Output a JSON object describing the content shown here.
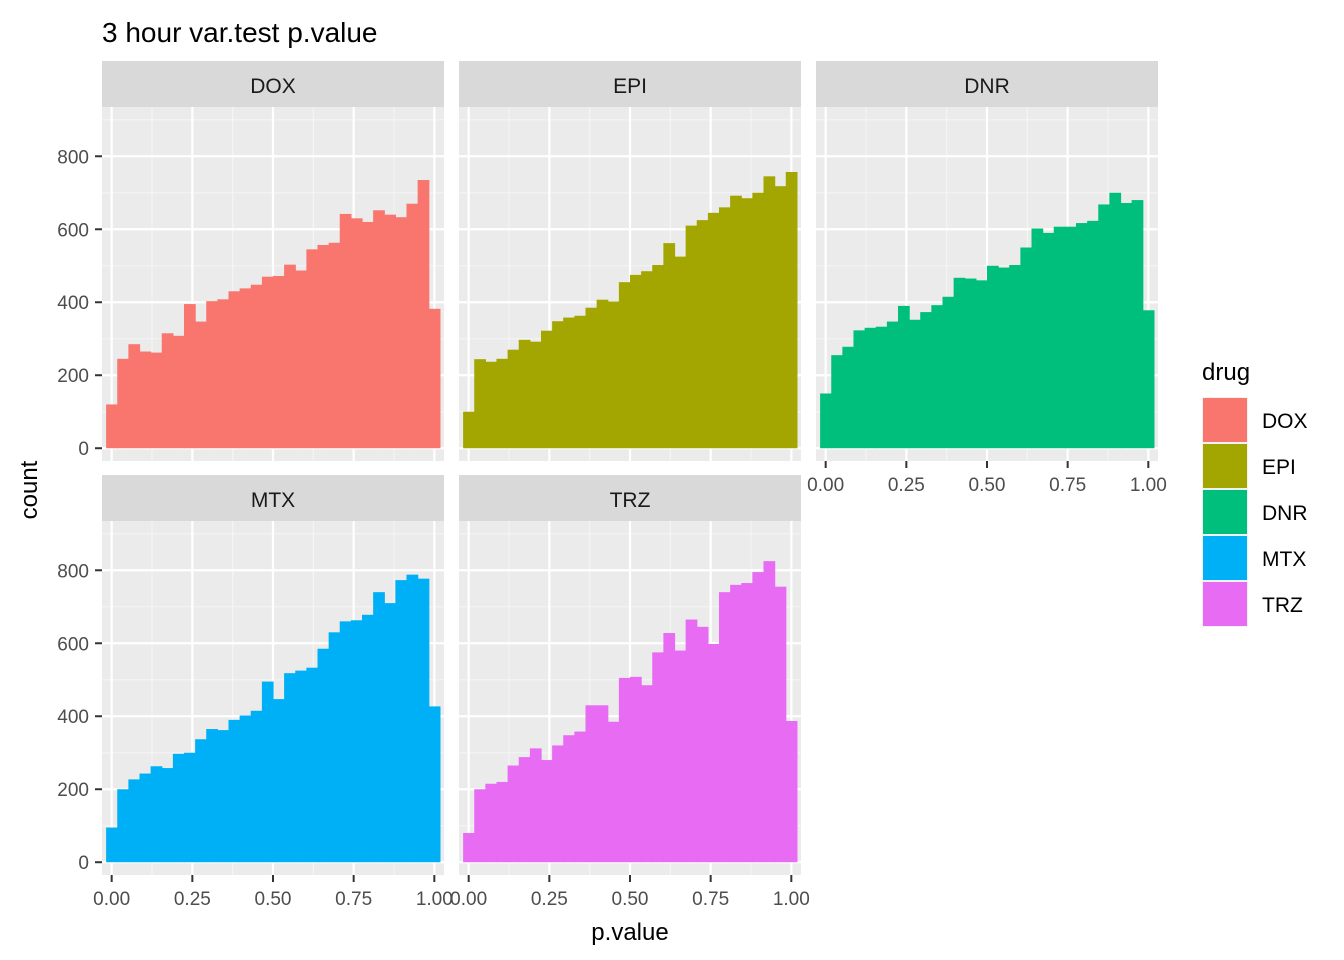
{
  "chart_data": {
    "type": "bar",
    "title": "3 hour var.test p.value",
    "xlabel": "p.value",
    "ylabel": "count",
    "xlim": [
      -0.03,
      1.03
    ],
    "ylim": [
      -35,
      935
    ],
    "x_ticks": [
      "0.00",
      "0.25",
      "0.50",
      "0.75",
      "1.00"
    ],
    "x_tick_values": [
      0,
      0.25,
      0.5,
      0.75,
      1
    ],
    "y_ticks": [
      "0",
      "200",
      "400",
      "600",
      "800"
    ],
    "y_tick_values": [
      0,
      200,
      400,
      600,
      800
    ],
    "bin_width": 0.0345,
    "bin_centers": [
      0.0,
      0.0345,
      0.069,
      0.1034,
      0.1379,
      0.1724,
      0.2069,
      0.2414,
      0.2759,
      0.3103,
      0.3448,
      0.3793,
      0.4138,
      0.4483,
      0.4828,
      0.5172,
      0.5517,
      0.5862,
      0.6207,
      0.6552,
      0.6897,
      0.7241,
      0.7586,
      0.7931,
      0.8276,
      0.8621,
      0.8966,
      0.931,
      0.9655,
      1.0
    ],
    "grid": true,
    "legend": {
      "title": "drug",
      "position": "right"
    },
    "series": [
      {
        "name": "DOX",
        "color": "#F8766D",
        "values": [
          120,
          245,
          285,
          265,
          262,
          315,
          308,
          395,
          347,
          403,
          408,
          430,
          438,
          448,
          470,
          472,
          503,
          487,
          545,
          557,
          563,
          642,
          630,
          620,
          652,
          640,
          633,
          670,
          735,
          382
        ]
      },
      {
        "name": "EPI",
        "color": "#A3A500",
        "values": [
          100,
          244,
          237,
          245,
          270,
          297,
          292,
          322,
          348,
          358,
          363,
          385,
          407,
          402,
          455,
          475,
          485,
          502,
          562,
          525,
          610,
          625,
          645,
          660,
          692,
          685,
          700,
          745,
          718,
          757
        ]
      },
      {
        "name": "DNR",
        "color": "#00BF7D",
        "values": [
          150,
          255,
          278,
          323,
          330,
          333,
          347,
          390,
          352,
          373,
          392,
          415,
          467,
          465,
          460,
          500,
          495,
          502,
          550,
          602,
          590,
          607,
          607,
          617,
          623,
          668,
          700,
          672,
          680,
          378
        ]
      },
      {
        "name": "MTX",
        "color": "#00B0F6",
        "values": [
          95,
          200,
          227,
          243,
          263,
          258,
          297,
          300,
          337,
          365,
          362,
          390,
          402,
          415,
          495,
          447,
          518,
          525,
          533,
          585,
          630,
          660,
          663,
          678,
          740,
          710,
          773,
          788,
          777,
          427
        ]
      },
      {
        "name": "TRZ",
        "color": "#E76BF3",
        "values": [
          80,
          200,
          215,
          220,
          265,
          288,
          312,
          280,
          320,
          348,
          358,
          430,
          430,
          385,
          505,
          508,
          485,
          575,
          628,
          580,
          665,
          645,
          598,
          740,
          760,
          765,
          795,
          825,
          755,
          387
        ]
      }
    ]
  }
}
